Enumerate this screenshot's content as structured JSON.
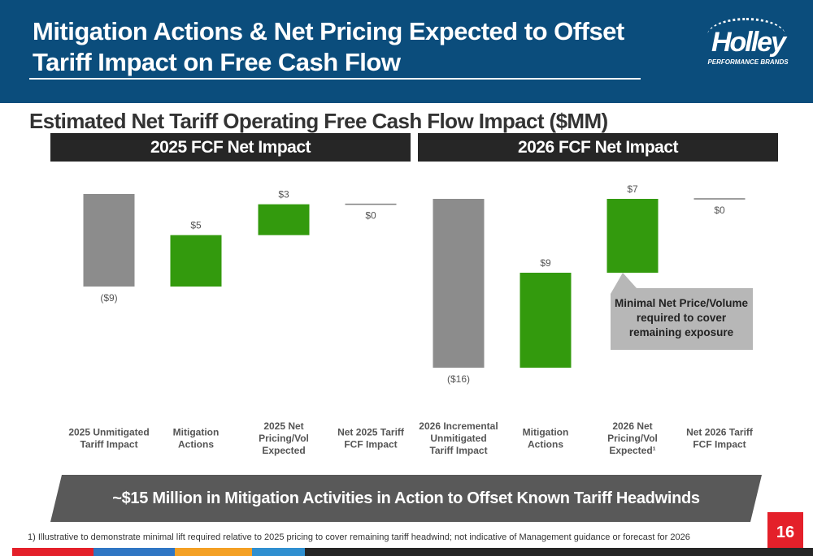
{
  "header": {
    "title": "Mitigation Actions & Net Pricing Expected to Offset Tariff Impact on Free Cash Flow",
    "logo_text": "Holley",
    "logo_tagline": "PERFORMANCE BRANDS"
  },
  "subtitle": "Estimated Net Tariff Operating Free Cash Flow Impact ($MM)",
  "panels": {
    "left_title": "2025 FCF Net Impact",
    "right_title": "2026 FCF Net Impact"
  },
  "colors": {
    "header_bg": "#0b4d7c",
    "negative": "#8c8c8c",
    "positive": "#339a0d",
    "net_line": "#7f7f7f",
    "callout_bg": "#b7b7b7",
    "banner_bg": "#595959",
    "accent_red": "#e4202a"
  },
  "chart_data": [
    {
      "type": "bar",
      "title": "2025 FCF Net Impact",
      "waterfall": true,
      "categories": [
        "2025 Unmitigated Tariff Impact",
        "Mitigation Actions",
        "2025 Net Pricing/Vol Expected",
        "Net 2025 Tariff FCF Impact"
      ],
      "values": [
        -9,
        5,
        3,
        0
      ],
      "data_labels": [
        "($9)",
        "$5",
        "$3",
        "$0"
      ],
      "kinds": [
        "negative",
        "positive",
        "positive",
        "net"
      ]
    },
    {
      "type": "bar",
      "title": "2026 FCF Net Impact",
      "waterfall": true,
      "categories": [
        "2026 Incremental Unmitigated Tariff Impact",
        "Mitigation Actions",
        "2026 Net Pricing/Vol Expected¹",
        "Net 2026 Tariff FCF Impact"
      ],
      "values": [
        -16,
        9,
        7,
        0
      ],
      "data_labels": [
        "($16)",
        "$9",
        "$7",
        "$0"
      ],
      "kinds": [
        "negative",
        "positive",
        "positive",
        "net"
      ],
      "callout": "Minimal Net Price/Volume required to cover remaining exposure"
    }
  ],
  "banner": "~$15 Million in Mitigation Activities in Action to Offset Known Tariff Headwinds",
  "footnote": "1) Illustrative to demonstrate minimal lift required relative to 2025 pricing to cover remaining tariff headwind; not indicative of Management guidance or forecast for 2026",
  "page_number": "16"
}
